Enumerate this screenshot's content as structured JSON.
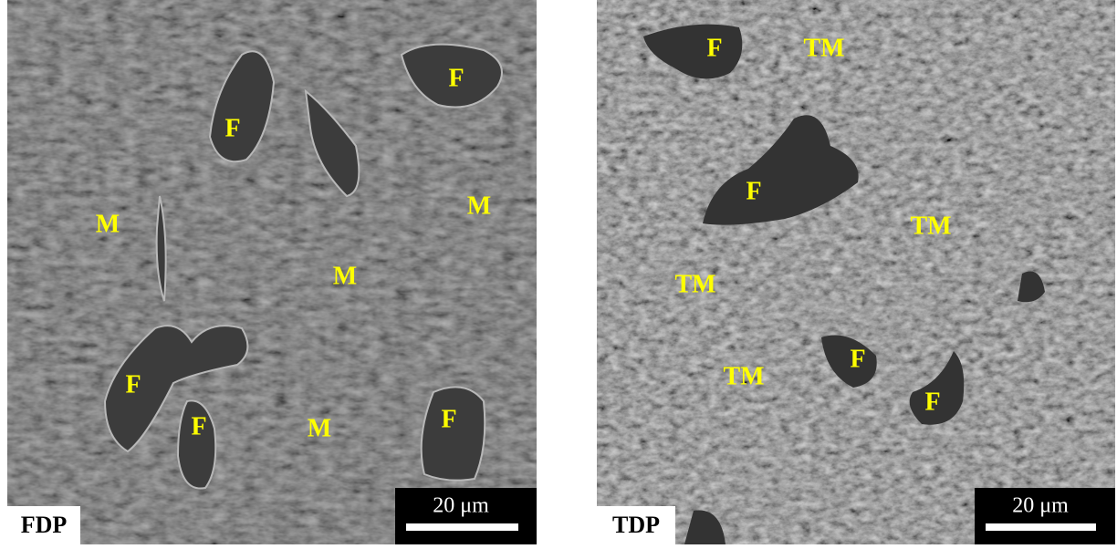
{
  "panels": [
    {
      "label": "FDP",
      "scale_bar": "20 μm",
      "phase_labels": [
        "F",
        "F",
        "M",
        "M",
        "M",
        "F",
        "F",
        "M",
        "F"
      ]
    },
    {
      "label": "TDP",
      "scale_bar": "20 μm",
      "phase_labels": [
        "F",
        "TM",
        "F",
        "TM",
        "TM",
        "F",
        "TM",
        "F"
      ]
    }
  ]
}
